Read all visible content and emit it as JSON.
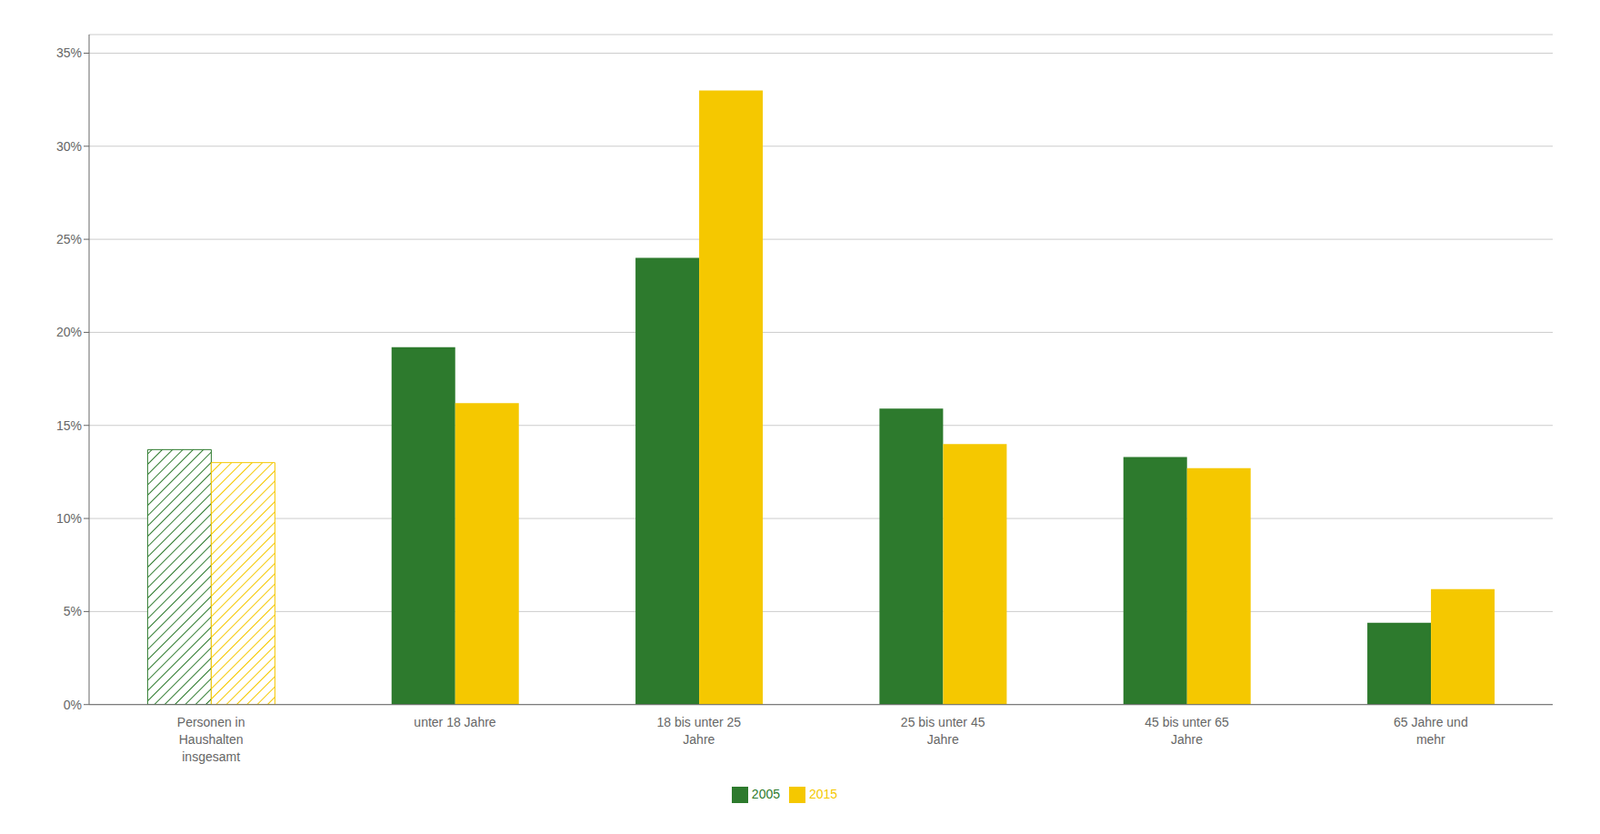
{
  "chart_data": {
    "type": "bar",
    "categories": [
      "Personen in\nHaushalten\ninsgesamt",
      "unter 18 Jahre",
      "18 bis unter 25\nJahre",
      "25 bis unter 45\nJahre",
      "45 bis unter 65\nJahre",
      "65 Jahre und\nmehr"
    ],
    "series": [
      {
        "name": "2005",
        "color": "#2d7a2d",
        "values": [
          13.7,
          19.2,
          24.0,
          15.9,
          13.3,
          4.4
        ]
      },
      {
        "name": "2015",
        "color": "#f5c800",
        "values": [
          13.0,
          16.2,
          33.0,
          14.0,
          12.7,
          6.2
        ]
      }
    ],
    "ylim": [
      0,
      36
    ],
    "yticks": [
      {
        "value": 0,
        "label": "0%"
      },
      {
        "value": 5,
        "label": "5%"
      },
      {
        "value": 10,
        "label": "10%"
      },
      {
        "value": 15,
        "label": "15%"
      },
      {
        "value": 20,
        "label": "20%"
      },
      {
        "value": 25,
        "label": "25%"
      },
      {
        "value": 30,
        "label": "30%"
      },
      {
        "value": 35,
        "label": "35%"
      }
    ],
    "grid": true,
    "legend": "bottom"
  }
}
